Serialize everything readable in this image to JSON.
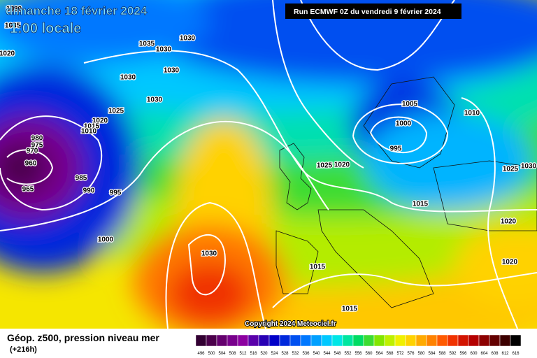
{
  "header": {
    "date": "dimanche 18 février 2024",
    "time": "1:00 locale",
    "run": "Run ECMWF 0Z du vendredi 9 février 2024"
  },
  "map": {
    "isobar_labels": [
      "1030",
      "1035",
      "1030",
      "1030",
      "1030",
      "1030",
      "1025",
      "1020",
      "1015",
      "1010",
      "980",
      "975",
      "970",
      "960",
      "985",
      "965",
      "990",
      "995",
      "1000",
      "1030",
      "1020",
      "1005",
      "1000",
      "995",
      "1010",
      "1025",
      "1020",
      "1015",
      "1025",
      "1030",
      "1020",
      "1020",
      "1015",
      "1015",
      "1035",
      "1030"
    ],
    "copyright": "Copyright 2024 Meteociel.fr"
  },
  "legend": {
    "title": "Géop. z500, pression niveau mer",
    "lead": "(+216h)",
    "scale": [
      496,
      500,
      504,
      508,
      512,
      516,
      520,
      524,
      528,
      532,
      536,
      540,
      544,
      548,
      552,
      556,
      560,
      564,
      568,
      572,
      576,
      580,
      584,
      588,
      592,
      596,
      600,
      604,
      608,
      612,
      616
    ],
    "colors": [
      "#320032",
      "#4b004b",
      "#64006e",
      "#78008c",
      "#8c00a0",
      "#5a00aa",
      "#2800b4",
      "#0000c8",
      "#0028dc",
      "#0050f0",
      "#0078ff",
      "#00a0ff",
      "#00c8ff",
      "#00e6e6",
      "#00e6a0",
      "#00dc64",
      "#3cdc32",
      "#82e600",
      "#bef000",
      "#f0f000",
      "#ffd200",
      "#ffaa00",
      "#ff8200",
      "#ff5a00",
      "#f03200",
      "#d21400",
      "#b40000",
      "#8c0000",
      "#640000",
      "#3c0000",
      "#000000"
    ]
  }
}
